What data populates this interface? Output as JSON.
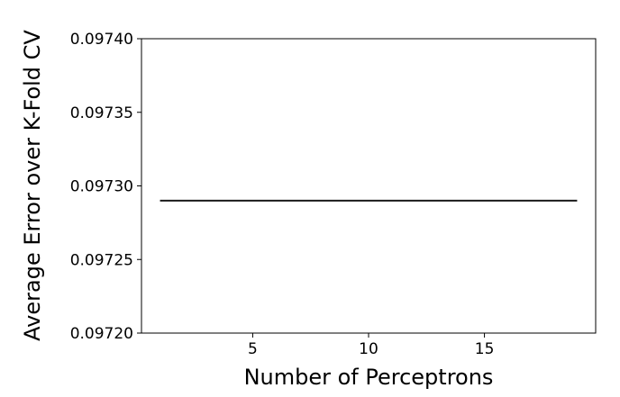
{
  "chart_data": {
    "type": "line",
    "title": "",
    "xlabel": "Number of Perceptrons",
    "ylabel": "Average Error over K-Fold CV",
    "xlim": [
      0.2,
      19.8
    ],
    "ylim": [
      0.0972,
      0.0974
    ],
    "x_ticks": [
      5,
      10,
      15
    ],
    "x_tick_labels": [
      "5",
      "10",
      "15"
    ],
    "y_ticks": [
      0.0972,
      0.09725,
      0.0973,
      0.09735,
      0.0974
    ],
    "y_tick_labels": [
      "0.09720",
      "0.09725",
      "0.09730",
      "0.09735",
      "0.09740"
    ],
    "grid": false,
    "series": [
      {
        "x": [
          1,
          2,
          3,
          4,
          5,
          6,
          7,
          8,
          9,
          10,
          11,
          12,
          13,
          14,
          15,
          16,
          17,
          18,
          19
        ],
        "values": [
          0.09729,
          0.09729,
          0.09729,
          0.09729,
          0.09729,
          0.09729,
          0.09729,
          0.09729,
          0.09729,
          0.09729,
          0.09729,
          0.09729,
          0.09729,
          0.09729,
          0.09729,
          0.09729,
          0.09729,
          0.09729,
          0.09729
        ],
        "color": "#1a1a1a"
      }
    ]
  }
}
